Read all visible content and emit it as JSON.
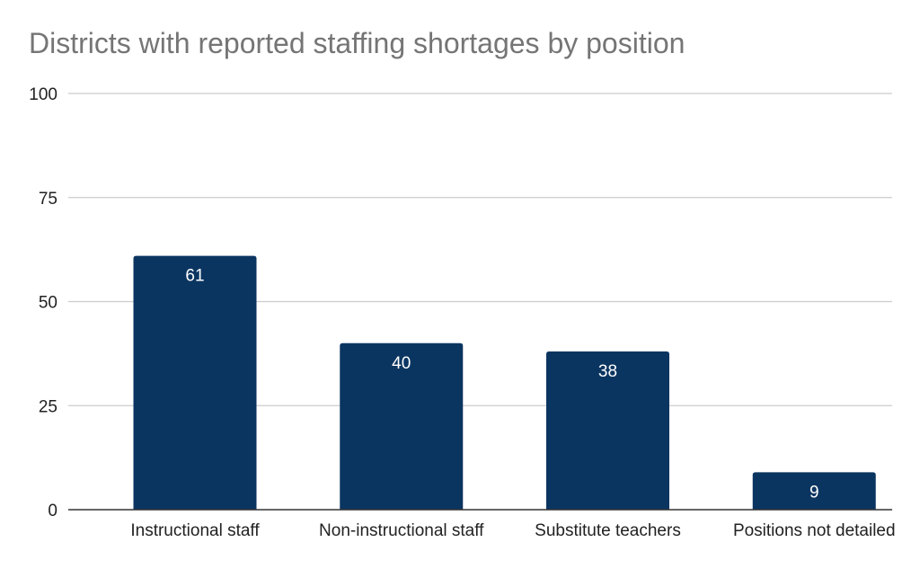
{
  "chart_data": {
    "type": "bar",
    "title": "Districts with reported staffing shortages by position",
    "xlabel": "",
    "ylabel": "",
    "categories": [
      "Instructional staff",
      "Non-instructional staff",
      "Substitute teachers",
      "Positions not detailed"
    ],
    "values": [
      61,
      40,
      38,
      9
    ],
    "data_labels": [
      "61",
      "40",
      "38",
      "9"
    ],
    "ylim": [
      0,
      100
    ],
    "yticks": [
      0,
      25,
      50,
      75,
      100
    ],
    "ytick_labels": [
      "0",
      "25",
      "50",
      "75",
      "100"
    ],
    "grid": true,
    "legend": "none",
    "bar_color": "#0b3561",
    "gridline_color": "#cccccc",
    "axis_color": "#333333"
  }
}
